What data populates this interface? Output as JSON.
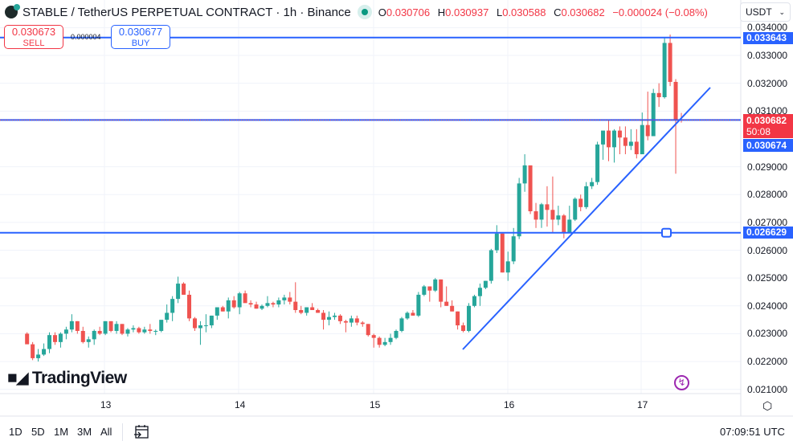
{
  "header": {
    "title": "STABLE / TetherUS PERPETUAL CONTRACT · 1h · Binance",
    "symbol": "STABLE",
    "quote": "TetherUS",
    "contract": "PERPETUAL CONTRACT",
    "interval": "1h",
    "exchange": "Binance",
    "ohlc": {
      "o_label": "O",
      "o": "0.030706",
      "h_label": "H",
      "h": "0.030937",
      "l_label": "L",
      "l": "0.030588",
      "c_label": "C",
      "c": "0.030682",
      "change": "−0.000024 (−0.08%)"
    }
  },
  "trade": {
    "sell_price": "0.030673",
    "sell_label": "SELL",
    "spread": "0.000004",
    "buy_price": "0.030677",
    "buy_label": "BUY"
  },
  "currency_selector": "USDT",
  "price_tags": {
    "resistance": "0.033643",
    "last_price": "0.030682",
    "countdown": "50:08",
    "bid_line": "0.030674",
    "support": "0.026629"
  },
  "logo_text": "TradingView",
  "range_buttons": [
    "1D",
    "5D",
    "1M",
    "3M",
    "All"
  ],
  "clock": "07:09:51 UTC",
  "colors": {
    "up": "#26a69a",
    "down": "#ef5350",
    "drawing": "#2962ff",
    "last_price_tag": "#f23645"
  },
  "chart_data": {
    "type": "candlestick",
    "title": "STABLE / TetherUS PERPETUAL CONTRACT · 1h · Binance",
    "xlabel": "",
    "ylabel": "USDT",
    "x_ticks": [
      "13",
      "14",
      "15",
      "16",
      "17"
    ],
    "y_ticks": [
      "0.034000",
      "0.033000",
      "0.032000",
      "0.031000",
      "0.029000",
      "0.028000",
      "0.027000",
      "0.026000",
      "0.025000",
      "0.024000",
      "0.023000",
      "0.022000",
      "0.021000"
    ],
    "ylim": [
      0.0208,
      0.0342
    ],
    "grid": true,
    "horizontal_lines": [
      0.033643,
      0.030682,
      0.026629
    ],
    "trendline": {
      "start": {
        "x_day": 15.67,
        "price": 0.02238
      },
      "end": {
        "x_day": 17.5,
        "price": 0.03185
      }
    },
    "last": {
      "open": 0.030706,
      "high": 0.030937,
      "low": 0.030588,
      "close": 0.030682
    },
    "candles": [
      [
        0.023,
        0.02305,
        0.02265,
        0.02262
      ],
      [
        0.02262,
        0.0227,
        0.02205,
        0.02212
      ],
      [
        0.02212,
        0.02245,
        0.022,
        0.02225
      ],
      [
        0.02225,
        0.02265,
        0.0222,
        0.02245
      ],
      [
        0.02245,
        0.02305,
        0.0223,
        0.02295
      ],
      [
        0.02295,
        0.02305,
        0.0226,
        0.0227
      ],
      [
        0.0227,
        0.02305,
        0.0225,
        0.023
      ],
      [
        0.023,
        0.02325,
        0.0228,
        0.02315
      ],
      [
        0.02315,
        0.0237,
        0.02305,
        0.02345
      ],
      [
        0.02345,
        0.02345,
        0.023,
        0.0231
      ],
      [
        0.0231,
        0.02325,
        0.02265,
        0.0227
      ],
      [
        0.0227,
        0.0229,
        0.0225,
        0.0228
      ],
      [
        0.0228,
        0.02315,
        0.0226,
        0.0231
      ],
      [
        0.0231,
        0.02325,
        0.02295,
        0.023
      ],
      [
        0.023,
        0.02345,
        0.02295,
        0.02345
      ],
      [
        0.02345,
        0.02345,
        0.02305,
        0.0231
      ],
      [
        0.0231,
        0.02345,
        0.023,
        0.02335
      ],
      [
        0.02335,
        0.02335,
        0.02295,
        0.023
      ],
      [
        0.023,
        0.0232,
        0.0229,
        0.02315
      ],
      [
        0.02315,
        0.0233,
        0.02305,
        0.0232
      ],
      [
        0.0232,
        0.02325,
        0.023,
        0.02305
      ],
      [
        0.02305,
        0.02325,
        0.023,
        0.02315
      ],
      [
        0.02315,
        0.02335,
        0.023,
        0.0231
      ],
      [
        0.0231,
        0.02315,
        0.02295,
        0.0231
      ],
      [
        0.0231,
        0.02345,
        0.02305,
        0.0235
      ],
      [
        0.0235,
        0.02405,
        0.0234,
        0.02375
      ],
      [
        0.02375,
        0.02435,
        0.02345,
        0.02425
      ],
      [
        0.02425,
        0.02505,
        0.0241,
        0.0248
      ],
      [
        0.0248,
        0.02485,
        0.0244,
        0.0244
      ],
      [
        0.0244,
        0.02455,
        0.02345,
        0.02355
      ],
      [
        0.02355,
        0.0236,
        0.0231,
        0.0232
      ],
      [
        0.0232,
        0.02345,
        0.0226,
        0.0233
      ],
      [
        0.0233,
        0.0237,
        0.02305,
        0.0233
      ],
      [
        0.0233,
        0.02365,
        0.0232,
        0.02365
      ],
      [
        0.02365,
        0.02395,
        0.0235,
        0.02395
      ],
      [
        0.02395,
        0.024,
        0.0238,
        0.0238
      ],
      [
        0.0238,
        0.0243,
        0.02355,
        0.0242
      ],
      [
        0.0242,
        0.02435,
        0.0239,
        0.02395
      ],
      [
        0.02395,
        0.0245,
        0.0237,
        0.02445
      ],
      [
        0.02445,
        0.02455,
        0.02425,
        0.0241
      ],
      [
        0.0241,
        0.0242,
        0.02395,
        0.02405
      ],
      [
        0.02405,
        0.02415,
        0.0239,
        0.0239
      ],
      [
        0.0239,
        0.02405,
        0.02385,
        0.024
      ],
      [
        0.024,
        0.02435,
        0.02395,
        0.0241
      ],
      [
        0.0241,
        0.02415,
        0.02395,
        0.02405
      ],
      [
        0.02405,
        0.0243,
        0.02395,
        0.0242
      ],
      [
        0.0242,
        0.0244,
        0.02405,
        0.0243
      ],
      [
        0.0243,
        0.0245,
        0.02405,
        0.02415
      ],
      [
        0.02415,
        0.02485,
        0.02375,
        0.02385
      ],
      [
        0.02385,
        0.024,
        0.0237,
        0.02375
      ],
      [
        0.02375,
        0.02395,
        0.02365,
        0.02395
      ],
      [
        0.02395,
        0.0241,
        0.02385,
        0.02385
      ],
      [
        0.02385,
        0.0239,
        0.02375,
        0.02375
      ],
      [
        0.02375,
        0.02385,
        0.02315,
        0.0235
      ],
      [
        0.0235,
        0.0238,
        0.0233,
        0.0236
      ],
      [
        0.0236,
        0.02375,
        0.0235,
        0.02365
      ],
      [
        0.02365,
        0.0237,
        0.02335,
        0.02345
      ],
      [
        0.02345,
        0.0235,
        0.02305,
        0.0234
      ],
      [
        0.0234,
        0.02365,
        0.02325,
        0.02355
      ],
      [
        0.02355,
        0.02365,
        0.0233,
        0.0234
      ],
      [
        0.0234,
        0.02345,
        0.02325,
        0.02335
      ],
      [
        0.02335,
        0.02335,
        0.0229,
        0.02295
      ],
      [
        0.02295,
        0.023,
        0.0225,
        0.02285
      ],
      [
        0.02285,
        0.0229,
        0.0225,
        0.0226
      ],
      [
        0.0226,
        0.02285,
        0.02255,
        0.0227
      ],
      [
        0.0227,
        0.023,
        0.0226,
        0.02285
      ],
      [
        0.02285,
        0.02315,
        0.0228,
        0.0231
      ],
      [
        0.0231,
        0.0236,
        0.02305,
        0.02355
      ],
      [
        0.02355,
        0.0238,
        0.0235,
        0.02375
      ],
      [
        0.02375,
        0.02385,
        0.02365,
        0.02365
      ],
      [
        0.02365,
        0.0245,
        0.0236,
        0.0244
      ],
      [
        0.0244,
        0.02475,
        0.02435,
        0.0247
      ],
      [
        0.0247,
        0.0247,
        0.02415,
        0.02455
      ],
      [
        0.02455,
        0.025,
        0.0245,
        0.02495
      ],
      [
        0.02495,
        0.02495,
        0.02395,
        0.02415
      ],
      [
        0.02415,
        0.0247,
        0.024,
        0.024
      ],
      [
        0.024,
        0.0242,
        0.0238,
        0.0238
      ],
      [
        0.0238,
        0.0238,
        0.02315,
        0.0233
      ],
      [
        0.0233,
        0.0234,
        0.02305,
        0.0231
      ],
      [
        0.0231,
        0.0241,
        0.02305,
        0.024
      ],
      [
        0.024,
        0.0244,
        0.02395,
        0.02435
      ],
      [
        0.02435,
        0.0248,
        0.024,
        0.02465
      ],
      [
        0.02465,
        0.0249,
        0.0246,
        0.0249
      ],
      [
        0.0249,
        0.02605,
        0.0248,
        0.026
      ],
      [
        0.026,
        0.0269,
        0.0259,
        0.0266
      ],
      [
        0.0266,
        0.0266,
        0.0252,
        0.0252
      ],
      [
        0.0252,
        0.02595,
        0.0249,
        0.0256
      ],
      [
        0.0256,
        0.0268,
        0.0255,
        0.0265
      ],
      [
        0.0265,
        0.0286,
        0.0264,
        0.0284
      ],
      [
        0.0284,
        0.02945,
        0.0281,
        0.02905
      ],
      [
        0.02905,
        0.0288,
        0.0273,
        0.0274
      ],
      [
        0.0274,
        0.0277,
        0.0268,
        0.0271
      ],
      [
        0.0271,
        0.0277,
        0.0268,
        0.02765
      ],
      [
        0.02765,
        0.0283,
        0.02685,
        0.02745
      ],
      [
        0.02745,
        0.02865,
        0.02663,
        0.0271
      ],
      [
        0.0271,
        0.0276,
        0.0269,
        0.02725
      ],
      [
        0.02725,
        0.0273,
        0.02643,
        0.02663
      ],
      [
        0.02663,
        0.0276,
        0.02663,
        0.0271
      ],
      [
        0.0271,
        0.0279,
        0.02705,
        0.02785
      ],
      [
        0.02785,
        0.028,
        0.0274,
        0.02755
      ],
      [
        0.02755,
        0.02845,
        0.02748,
        0.0283
      ],
      [
        0.0283,
        0.0286,
        0.0282,
        0.02845
      ],
      [
        0.02845,
        0.0299,
        0.02835,
        0.0298
      ],
      [
        0.0298,
        0.03005,
        0.02925,
        0.0303
      ],
      [
        0.0303,
        0.0307,
        0.0292,
        0.0297
      ],
      [
        0.0297,
        0.03035,
        0.02915,
        0.0303
      ],
      [
        0.0303,
        0.03045,
        0.02945,
        0.03005
      ],
      [
        0.03005,
        0.03045,
        0.02945,
        0.02975
      ],
      [
        0.02975,
        0.03035,
        0.0296,
        0.0299
      ],
      [
        0.0299,
        0.03035,
        0.0293,
        0.02945
      ],
      [
        0.02945,
        0.03095,
        0.02945,
        0.0305
      ],
      [
        0.0305,
        0.0317,
        0.02995,
        0.0301
      ],
      [
        0.0301,
        0.0318,
        0.0302,
        0.03165
      ],
      [
        0.03165,
        0.032,
        0.03115,
        0.0315
      ],
      [
        0.0315,
        0.03365,
        0.03145,
        0.03345
      ],
      [
        0.03345,
        0.03375,
        0.0319,
        0.03205
      ],
      [
        0.03205,
        0.03215,
        0.02875,
        0.03068
      ],
      [
        0.030706,
        0.030937,
        0.030588,
        0.030682
      ]
    ]
  }
}
